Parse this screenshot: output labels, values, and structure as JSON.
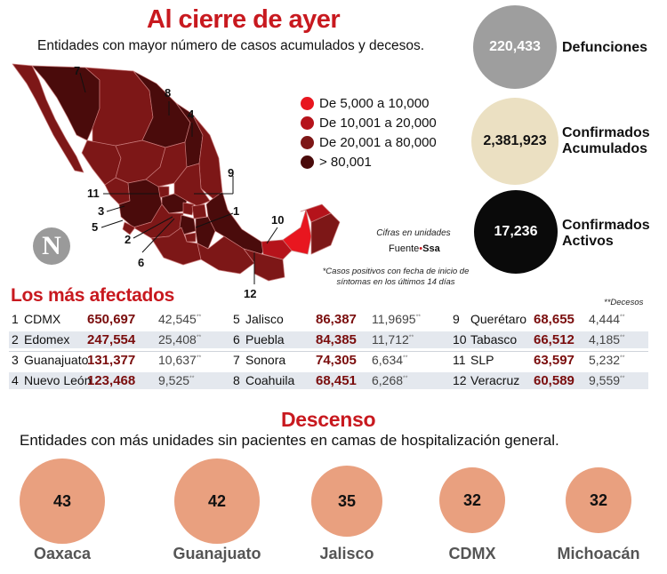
{
  "header": {
    "title": "Al cierre de ayer",
    "subtitle": "Entidades con mayor número de casos acumulados y decesos."
  },
  "stats": [
    {
      "value": "220,433",
      "label": "Defunciones",
      "color": "#9e9e9e",
      "text_color": "#ffffff"
    },
    {
      "value": "2,381,923",
      "label": "Confirmados Acumulados",
      "color": "#ebe0c2",
      "text_color": "#111111"
    },
    {
      "value": "17,236",
      "label": "Confirmados Activos",
      "color": "#0a0a0a",
      "text_color": "#ffffff"
    }
  ],
  "legend": [
    {
      "label": "De 5,000 a 10,000",
      "color": "#e8161f"
    },
    {
      "label": "De 10,001 a 20,000",
      "color": "#b5131b"
    },
    {
      "label": "De 20,001 a 80,000",
      "color": "#7d1717"
    },
    {
      "label": "> 80,001",
      "color": "#4a0b0b"
    }
  ],
  "map_numbers": [
    "7",
    "8",
    "4",
    "9",
    "11",
    "3",
    "1",
    "5",
    "2",
    "6",
    "10",
    "12"
  ],
  "notes": {
    "cifras": "Cifras en unidades",
    "fuente_label": "Fuente",
    "fuente_value": "Ssa",
    "casos": "*Casos positivos con fecha de inicio de síntomas en los últimos 14 días",
    "decesos": "**Decesos"
  },
  "logo": "N",
  "ranking": {
    "title": "Los más afectados",
    "columns": [
      [
        {
          "rank": "1",
          "state": "CDMX",
          "cases": "650,697",
          "deaths": "42,545"
        },
        {
          "rank": "2",
          "state": "Edomex",
          "cases": "247,554",
          "deaths": "25,408"
        },
        {
          "rank": "3",
          "state": "Guanajuato",
          "cases": "131,377",
          "deaths": "10,637"
        },
        {
          "rank": "4",
          "state": "Nuevo León",
          "cases": "123,468",
          "deaths": "9,525"
        }
      ],
      [
        {
          "rank": "5",
          "state": "Jalisco",
          "cases": "86,387",
          "deaths": "11,9695"
        },
        {
          "rank": "6",
          "state": "Puebla",
          "cases": "84,385",
          "deaths": "11,712"
        },
        {
          "rank": "7",
          "state": "Sonora",
          "cases": "74,305",
          "deaths": "6,634"
        },
        {
          "rank": "8",
          "state": "Coahuila",
          "cases": "68,451",
          "deaths": "6,268"
        }
      ],
      [
        {
          "rank": "9",
          "state": "Querétaro",
          "cases": "68,655",
          "deaths": "4,444"
        },
        {
          "rank": "10",
          "state": "Tabasco",
          "cases": "66,512",
          "deaths": "4,185"
        },
        {
          "rank": "11",
          "state": "SLP",
          "cases": "63,597",
          "deaths": "5,232"
        },
        {
          "rank": "12",
          "state": "Veracruz",
          "cases": "60,589",
          "deaths": "9,559"
        }
      ]
    ],
    "marker": "**"
  },
  "descenso": {
    "title": "Descenso",
    "subtitle": "Entidades con más unidades sin pacientes en camas de hospitalización general.",
    "items": [
      {
        "value": "43",
        "label": "Oaxaca"
      },
      {
        "value": "42",
        "label": "Guanajuato"
      },
      {
        "value": "35",
        "label": "Jalisco"
      },
      {
        "value": "32",
        "label": "CDMX"
      },
      {
        "value": "32",
        "label": "Michoacán"
      }
    ]
  }
}
